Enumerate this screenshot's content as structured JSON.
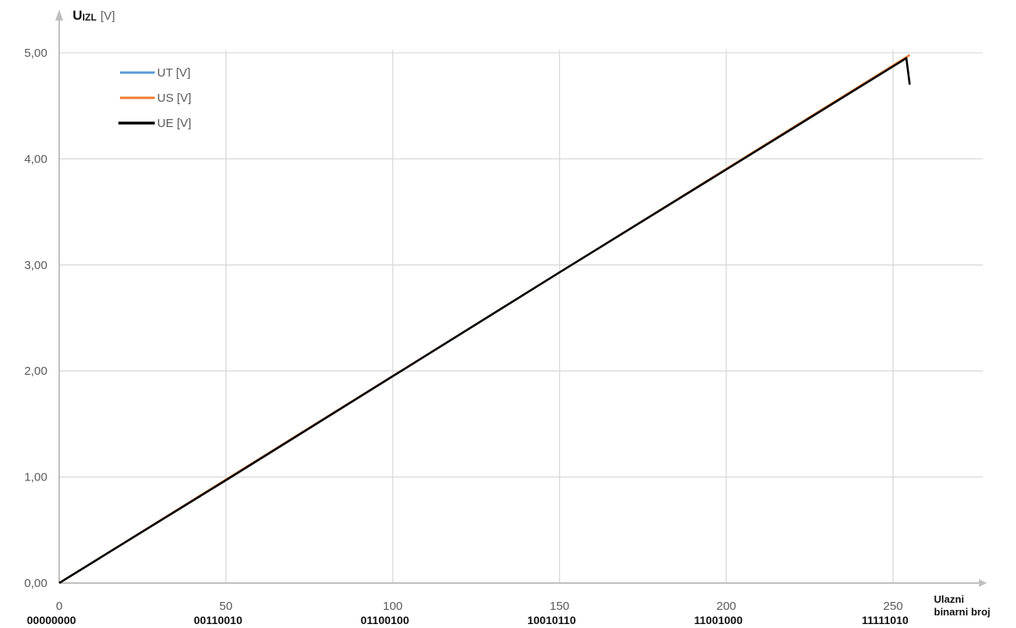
{
  "chart_data": {
    "type": "line",
    "title": "",
    "ylabel": {
      "main": "U",
      "sub": "IZL",
      "unit": "[V]"
    },
    "xlabel": {
      "line1": "Ulazni",
      "line2": "binarni broj"
    },
    "xlim": [
      0,
      276
    ],
    "ylim": [
      0,
      5.0
    ],
    "x_ticks": [
      0,
      50,
      100,
      150,
      200,
      250
    ],
    "x_tick_labels": [
      "0",
      "50",
      "100",
      "150",
      "200",
      "250"
    ],
    "x_binary_labels": [
      "00000000",
      "00110010",
      "01100100",
      "10010110",
      "11001000",
      "11111010"
    ],
    "y_ticks": [
      0,
      1,
      2,
      3,
      4,
      5
    ],
    "y_tick_labels": [
      "0,00",
      "1,00",
      "2,00",
      "3,00",
      "4,00",
      "5,00"
    ],
    "grid": true,
    "legend_position": "top-left",
    "colors": {
      "grid": "#d9d9d9",
      "axis": "#bfbfbf"
    },
    "series": [
      {
        "name": "UT [V]",
        "color": "#5b9bd5",
        "x": [
          0,
          255
        ],
        "y": [
          0,
          4.98
        ]
      },
      {
        "name": "US [V]",
        "color": "#ed7d31",
        "x": [
          0,
          255
        ],
        "y": [
          0,
          4.98
        ]
      },
      {
        "name": "UE [V]",
        "color": "#000000",
        "x": [
          0,
          50,
          100,
          150,
          200,
          254,
          255
        ],
        "y": [
          0,
          0.97,
          1.95,
          2.93,
          3.9,
          4.95,
          4.7
        ]
      }
    ]
  }
}
